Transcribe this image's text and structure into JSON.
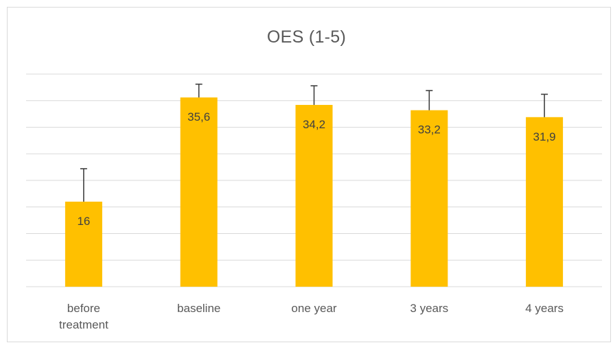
{
  "chart_data": {
    "type": "bar",
    "title": "OES (1-5)",
    "categories": [
      [
        "before",
        "treatment"
      ],
      [
        "baseline"
      ],
      [
        "one year"
      ],
      [
        "3 years"
      ],
      [
        "4 years"
      ]
    ],
    "values": [
      16,
      35.6,
      34.2,
      33.2,
      31.9
    ],
    "data_labels": [
      "16",
      "35,6",
      "34,2",
      "33,2",
      "31,9"
    ],
    "error_bars_upper": [
      22.2,
      38.1,
      37.8,
      36.9,
      36.2
    ],
    "xlabel": "",
    "ylabel": "",
    "ylim": [
      0,
      40
    ],
    "y_axis_labels_visible": false,
    "grid": true,
    "legend": "none",
    "colors": {
      "bar": "#FFC000",
      "error_bar": "#404040",
      "gridline": "#d9d9d9",
      "text": "#595959"
    }
  }
}
